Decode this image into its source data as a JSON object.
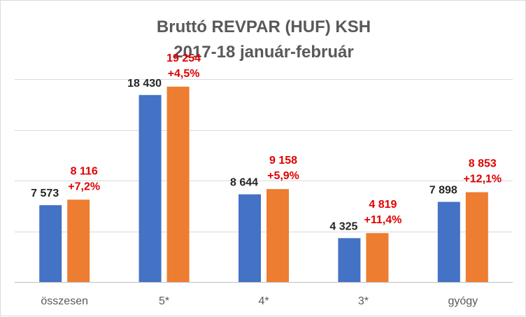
{
  "chart_data": {
    "type": "bar",
    "title": "Bruttó REVPAR (HUF) KSH",
    "subtitle": "2017-18 január-február",
    "categories": [
      "összesen",
      "5*",
      "4*",
      "3*",
      "gyógy"
    ],
    "series": [
      {
        "color": "#4472c4",
        "values": [
          7573,
          18430,
          8644,
          4325,
          7898
        ],
        "labels": [
          "7 573",
          "18 430",
          "8 644",
          "4 325",
          "7 898"
        ]
      },
      {
        "color": "#ed7d31",
        "values": [
          8116,
          19254,
          9158,
          4819,
          8853
        ],
        "labels": [
          "8 116",
          "19 254",
          "9 158",
          "4 819",
          "8 853"
        ],
        "changes": [
          "+7,2%",
          "+4,5%",
          "+5,9%",
          "+11,4%",
          "+12,1%"
        ]
      }
    ],
    "ylim": [
      0,
      20000
    ],
    "y_gridline_step": 5000,
    "grid": true,
    "legend": "none"
  }
}
